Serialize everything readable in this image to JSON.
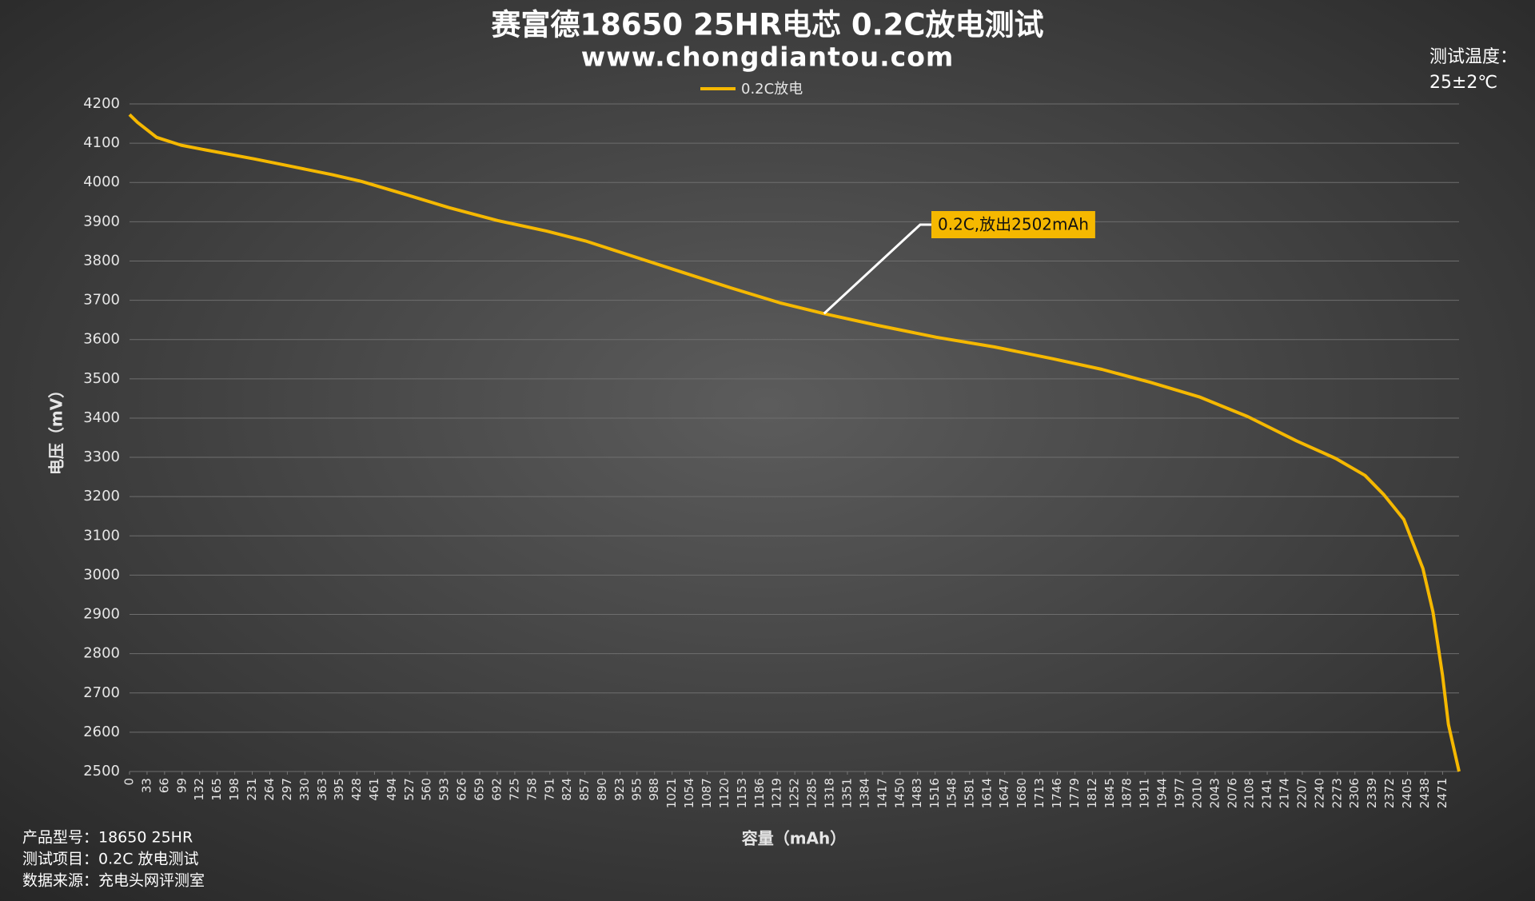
{
  "chart_data": {
    "type": "line",
    "title": "赛富德18650 25HR电芯  0.2C放电测试",
    "subtitle": "www.chongdiantou.com",
    "side_note": [
      "测试温度：",
      "25±2℃"
    ],
    "notes": [
      "产品型号：18650 25HR",
      "测试项目：0.2C 放电测试",
      "数据来源：充电头网评测室"
    ],
    "x_label": "容量（mAh）",
    "y_label": "电压（mV）",
    "annotation": "0.2C,放出2502mAh",
    "legend": "top",
    "grid": true,
    "x": [
      0,
      15,
      51,
      97,
      143,
      235,
      308,
      381,
      436,
      528,
      601,
      693,
      785,
      858,
      950,
      1041,
      1133,
      1225,
      1307,
      1408,
      1518,
      1628,
      1738,
      1830,
      1921,
      2013,
      2104,
      2196,
      2270,
      2325,
      2361,
      2398,
      2434,
      2453,
      2471,
      2482,
      2502
    ],
    "series": [
      {
        "name": "0.2C放电",
        "color": "#f5b800",
        "values": [
          4173,
          4153,
          4115,
          4095,
          4083,
          4060,
          4040,
          4020,
          4003,
          3966,
          3936,
          3903,
          3876,
          3851,
          3811,
          3771,
          3731,
          3693,
          3666,
          3636,
          3606,
          3581,
          3551,
          3524,
          3491,
          3454,
          3404,
          3342,
          3297,
          3254,
          3204,
          3142,
          3017,
          2906,
          2744,
          2620,
          2500
        ]
      }
    ],
    "xlim": [
      0,
      2502
    ],
    "xticks": [
      0,
      33,
      66,
      99,
      132,
      165,
      198,
      231,
      264,
      297,
      330,
      363,
      395,
      428,
      461,
      494,
      527,
      560,
      593,
      626,
      659,
      692,
      725,
      758,
      791,
      824,
      857,
      890,
      923,
      955,
      988,
      1021,
      1054,
      1087,
      1120,
      1153,
      1186,
      1219,
      1252,
      1285,
      1318,
      1351,
      1384,
      1417,
      1450,
      1483,
      1516,
      1548,
      1581,
      1614,
      1647,
      1680,
      1713,
      1746,
      1779,
      1812,
      1845,
      1878,
      1911,
      1944,
      1977,
      2010,
      2043,
      2076,
      2108,
      2141,
      2174,
      2207,
      2240,
      2273,
      2306,
      2339,
      2372,
      2405,
      2438,
      2471
    ],
    "ylim": [
      2500,
      4200
    ],
    "yticks": [
      2500,
      2600,
      2700,
      2800,
      2900,
      3000,
      3100,
      3200,
      3300,
      3400,
      3500,
      3600,
      3700,
      3800,
      3900,
      4000,
      4100,
      4200
    ]
  }
}
